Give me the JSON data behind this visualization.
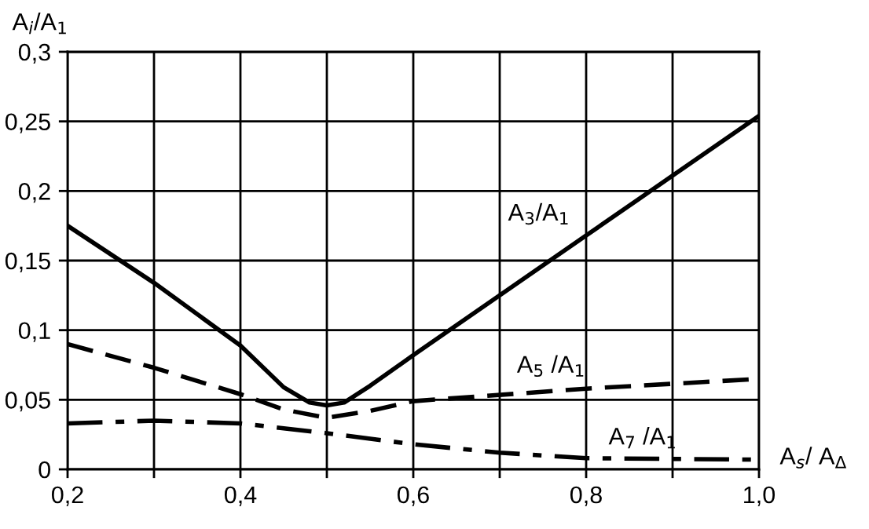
{
  "chart_data": {
    "type": "line",
    "xlabel": "A$_{s}$/ A$_{Δ}$",
    "ylabel": "A$_{i}$/A$_{1}$",
    "xlim": [
      0.2,
      1.0
    ],
    "ylim": [
      0,
      0.3
    ],
    "xticks": [
      {
        "value": 0.2,
        "label": "0,2"
      },
      {
        "value": 0.3,
        "label": null
      },
      {
        "value": 0.4,
        "label": "0,4"
      },
      {
        "value": 0.5,
        "label": null
      },
      {
        "value": 0.6,
        "label": "0,6"
      },
      {
        "value": 0.7,
        "label": null
      },
      {
        "value": 0.8,
        "label": "0,8"
      },
      {
        "value": 0.9,
        "label": null
      },
      {
        "value": 1.0,
        "label": "1,0"
      }
    ],
    "yticks": [
      0,
      {
        "value": 0.05,
        "label": "0,05"
      },
      {
        "value": 0.1,
        "label": "0,1"
      },
      {
        "value": 0.15,
        "label": "0,15"
      },
      {
        "value": 0.2,
        "label": "0,2"
      },
      {
        "value": 0.25,
        "label": "0,25"
      },
      {
        "value": 0.3,
        "label": "0,3"
      }
    ],
    "grid": true,
    "legend": false,
    "marker": "none",
    "series": [
      {
        "name": "A$_{3}$/A$_{1}$",
        "color": "#000000",
        "line_style": "solid",
        "x": [
          0.2,
          0.3,
          0.4,
          0.45,
          0.48,
          0.5,
          0.52,
          0.55,
          0.6,
          0.7,
          0.8,
          0.9,
          1.0
        ],
        "values": [
          0.175,
          0.134,
          0.089,
          0.059,
          0.048,
          0.046,
          0.048,
          0.06,
          0.082,
          0.125,
          0.168,
          0.211,
          0.254
        ]
      },
      {
        "name": "A$_{5}$ /A$_{1}$",
        "color": "#000000",
        "line_style": "dashed",
        "x": [
          0.2,
          0.3,
          0.4,
          0.45,
          0.5,
          0.55,
          0.6,
          0.8,
          1.0
        ],
        "values": [
          0.09,
          0.073,
          0.054,
          0.043,
          0.037,
          0.042,
          0.049,
          0.058,
          0.065
        ]
      },
      {
        "name": "A$_{7}$ /A$_{1}$",
        "color": "#000000",
        "line_style": "dashdot",
        "x": [
          0.2,
          0.3,
          0.4,
          0.5,
          0.6,
          0.7,
          0.8,
          1.0
        ],
        "values": [
          0.033,
          0.035,
          0.033,
          0.026,
          0.018,
          0.012,
          0.008,
          0.007
        ]
      }
    ]
  }
}
